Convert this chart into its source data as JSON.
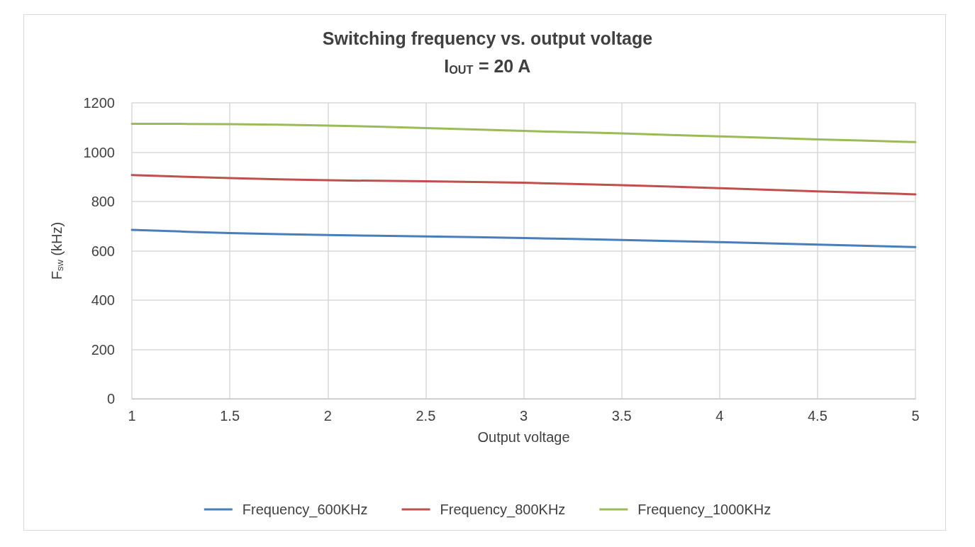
{
  "chart_data": {
    "type": "line",
    "title": "Switching frequency vs. output voltage",
    "subtitle": "I$_{OUT}$ = 20 A",
    "xlabel": "Output voltage",
    "ylabel": "F$_{sw}$ (kHz)",
    "x": [
      1,
      1.5,
      2,
      2.5,
      3,
      3.5,
      4,
      4.5,
      5
    ],
    "series": [
      {
        "name": "Frequency_600KHz",
        "color": "#4a7ebb",
        "values": [
          685,
          672,
          664,
          658,
          652,
          644,
          635,
          625,
          615
        ]
      },
      {
        "name": "Frequency_800KHz",
        "color": "#c0504d",
        "values": [
          907,
          895,
          886,
          882,
          876,
          866,
          854,
          841,
          829
        ]
      },
      {
        "name": "Frequency_1000KHz",
        "color": "#9bbb59",
        "values": [
          1115,
          1114,
          1108,
          1098,
          1086,
          1076,
          1064,
          1052,
          1041
        ]
      }
    ],
    "xlim": [
      1,
      5
    ],
    "xticks": [
      1,
      1.5,
      2,
      2.5,
      3,
      3.5,
      4,
      4.5,
      5
    ],
    "ylim": [
      0,
      1200
    ],
    "yticks": [
      0,
      200,
      400,
      600,
      800,
      1000,
      1200
    ],
    "grid": true,
    "legend": "bottom",
    "marker": "none",
    "line_style": "solid"
  }
}
